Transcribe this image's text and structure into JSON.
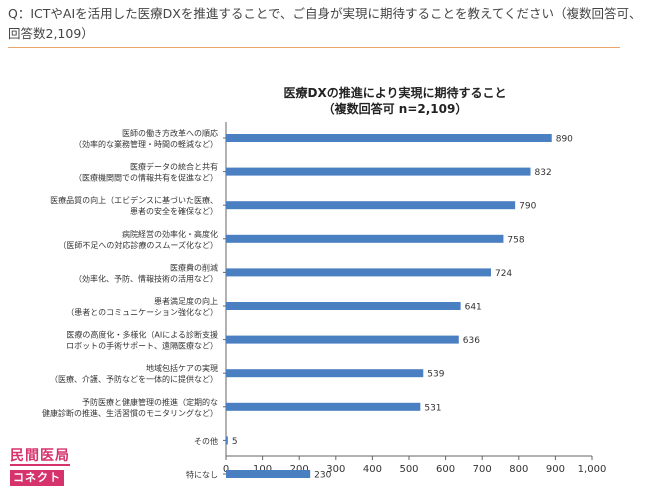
{
  "question": "Q：ICTやAIを活用した医療DXを推進することで、ご自身が実現に期待することを教えてください（複数回答可、回答数2,109）",
  "logo": {
    "line1": "民間医局",
    "line2": "コネクト"
  },
  "chart_data": {
    "type": "bar",
    "orientation": "horizontal",
    "title": "医療DXの推進により実現に期待すること",
    "subtitle": "（複数回答可 n=2,109）",
    "bar_color": "#4a7fc1",
    "categories": [
      [
        "医師の働き方改革への順応",
        "（効率的な業務管理・時間の軽減など）"
      ],
      [
        "医療データの統合と共有",
        "（医療機関間での情報共有を促進など）"
      ],
      [
        "医療品質の向上（エビデンスに基づいた医療、",
        "患者の安全を確保など）"
      ],
      [
        "病院経営の効率化・高度化",
        "（医師不足への対応診療のスムーズ化など）"
      ],
      [
        "医療費の削減",
        "（効率化、予防、情報技術の活用など）"
      ],
      [
        "患者満足度の向上",
        "（患者とのコミュニケーション強化など）"
      ],
      [
        "医療の高度化・多様化（AIによる診断支援",
        "ロボットの手術サポート、遠隔医療など）"
      ],
      [
        "地域包括ケアの実現",
        "（医療、介護、予防などを一体的に提供など）"
      ],
      [
        "予防医療と健康管理の推進（定期的な",
        "健康診断の推進、生活習慣のモニタリングなど）"
      ],
      [
        "その他"
      ],
      [
        "特になし"
      ]
    ],
    "values": [
      890,
      832,
      790,
      758,
      724,
      641,
      636,
      539,
      531,
      5,
      230
    ],
    "value_labels": [
      "890",
      "832",
      "790",
      "758",
      "724",
      "641",
      "636",
      "539",
      "531",
      "5",
      "230"
    ],
    "xlim": [
      0,
      1000
    ],
    "ticks": [
      0,
      100,
      200,
      300,
      400,
      500,
      600,
      700,
      800,
      900,
      1000
    ],
    "tick_labels": [
      "0",
      "100",
      "200",
      "300",
      "400",
      "500",
      "600",
      "700",
      "800",
      "900",
      "1,000"
    ]
  }
}
